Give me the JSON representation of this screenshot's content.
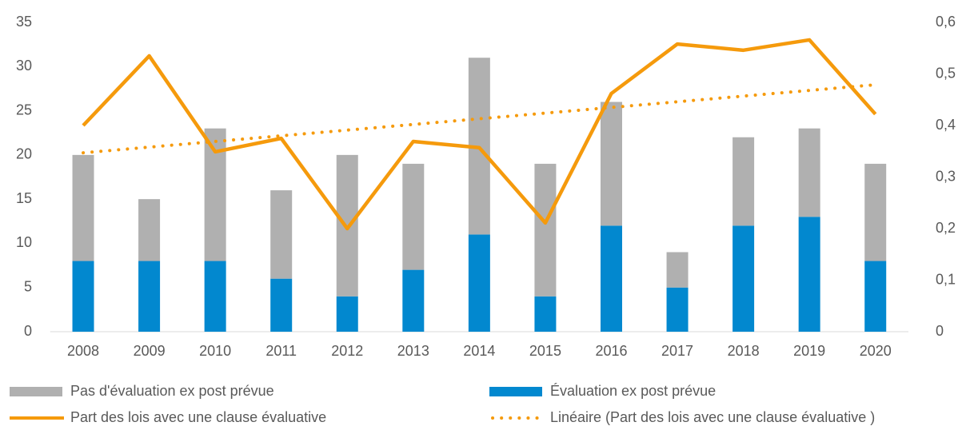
{
  "chart_data": {
    "type": "bar",
    "categories": [
      "2008",
      "2009",
      "2010",
      "2011",
      "2012",
      "2013",
      "2014",
      "2015",
      "2016",
      "2017",
      "2018",
      "2019",
      "2020"
    ],
    "series": [
      {
        "name": "Pas d'évaluation ex post prévue",
        "color": "#b0b0b0",
        "values": [
          12,
          7,
          15,
          10,
          16,
          12,
          20,
          15,
          14,
          4,
          10,
          10,
          11
        ]
      },
      {
        "name": "Évaluation ex post prévue",
        "color": "#0288cf",
        "values": [
          8,
          8,
          8,
          6,
          4,
          7,
          11,
          4,
          12,
          5,
          12,
          13,
          8
        ]
      },
      {
        "name": "Part des lois avec une clause évaluative",
        "color": "#f59a0c",
        "type": "line",
        "axis": "y2",
        "values": [
          0.4,
          0.535,
          0.349,
          0.375,
          0.2,
          0.369,
          0.357,
          0.211,
          0.462,
          0.558,
          0.546,
          0.566,
          0.422
        ]
      },
      {
        "name": "Linéaire (Part des lois avec une clause évaluative )",
        "color": "#f59a0c",
        "type": "line",
        "style": "dotted",
        "axis": "y2",
        "values": [
          0.347,
          0.358,
          0.369,
          0.38,
          0.391,
          0.402,
          0.413,
          0.424,
          0.435,
          0.446,
          0.457,
          0.468,
          0.479
        ]
      }
    ],
    "ylim": [
      0,
      35
    ],
    "yticks": [
      0,
      5,
      10,
      15,
      20,
      25,
      30,
      35
    ],
    "y2lim": [
      0,
      0.6
    ],
    "y2ticks": [
      0,
      {
        "value": 0.1,
        "label": "0,1"
      },
      {
        "value": 0.2,
        "label": "0,2"
      },
      {
        "value": 0.3,
        "label": "0,3"
      },
      {
        "value": 0.4,
        "label": "0,4"
      },
      {
        "value": 0.5,
        "label": "0,5"
      },
      {
        "value": 0.6,
        "label": "0,6"
      }
    ],
    "stacked": true,
    "legend": "bottom"
  }
}
